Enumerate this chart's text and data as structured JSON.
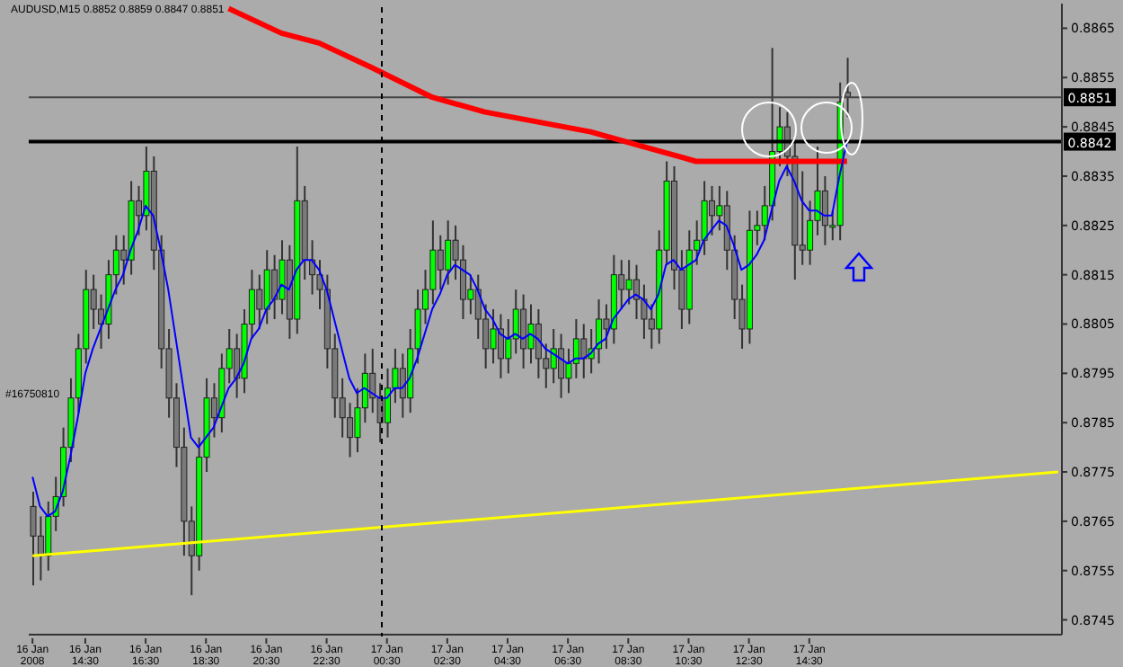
{
  "chart_data": {
    "type": "candlestick",
    "title": "AUDUSD,M15  0.8852 0.8859 0.8847 0.8851",
    "annotations": [
      "#16750810"
    ],
    "categories": [
      "16 Jan 2008",
      null,
      null,
      null,
      null,
      null,
      null,
      "16 Jan 14:30",
      null,
      null,
      null,
      null,
      null,
      null,
      null,
      "16 Jan 16:30",
      null,
      null,
      null,
      null,
      null,
      null,
      null,
      "16 Jan 18:30",
      null,
      null,
      null,
      null,
      null,
      null,
      null,
      "16 Jan 20:30",
      null,
      null,
      null,
      null,
      null,
      null,
      null,
      "16 Jan 22:30",
      null,
      null,
      null,
      null,
      null,
      null,
      null,
      "17 Jan 00:30",
      null,
      null,
      null,
      null,
      null,
      null,
      null,
      "17 Jan 02:30",
      null,
      null,
      null,
      null,
      null,
      null,
      null,
      "17 Jan 04:30",
      null,
      null,
      null,
      null,
      null,
      null,
      null,
      "17 Jan 06:30",
      null,
      null,
      null,
      null,
      null,
      null,
      null,
      "17 Jan 08:30",
      null,
      null,
      null,
      null,
      null,
      null,
      null,
      "17 Jan 10:30",
      null,
      null,
      null,
      null,
      null,
      null,
      null,
      "17 Jan 12:30",
      null,
      null,
      null,
      null,
      null,
      null,
      null,
      "17 Jan 14:30",
      null,
      null,
      null,
      null,
      null,
      null,
      null,
      null,
      null,
      null,
      null,
      null,
      null,
      null,
      null,
      null,
      null,
      null,
      null,
      null,
      null,
      null,
      null,
      null,
      null,
      null,
      null,
      null,
      null,
      null,
      null,
      null,
      null
    ],
    "ohlc": [
      [
        0.8768,
        0.8771,
        0.8752,
        0.8762
      ],
      [
        0.8762,
        0.8766,
        0.8753,
        0.8758
      ],
      [
        0.8758,
        0.8769,
        0.8755,
        0.8766
      ],
      [
        0.8766,
        0.8774,
        0.8763,
        0.877
      ],
      [
        0.877,
        0.8784,
        0.8768,
        0.878
      ],
      [
        0.878,
        0.8794,
        0.8777,
        0.879
      ],
      [
        0.879,
        0.8803,
        0.8787,
        0.88
      ],
      [
        0.88,
        0.8816,
        0.8797,
        0.8812
      ],
      [
        0.8812,
        0.8815,
        0.8804,
        0.8808
      ],
      [
        0.8808,
        0.8811,
        0.88,
        0.8805
      ],
      [
        0.8805,
        0.8818,
        0.8802,
        0.8815
      ],
      [
        0.8815,
        0.8823,
        0.8811,
        0.882
      ],
      [
        0.882,
        0.8823,
        0.8813,
        0.8818
      ],
      [
        0.8818,
        0.8834,
        0.8815,
        0.883
      ],
      [
        0.883,
        0.8833,
        0.8823,
        0.8827
      ],
      [
        0.8827,
        0.8841,
        0.8824,
        0.8836
      ],
      [
        0.8836,
        0.8839,
        0.8816,
        0.882
      ],
      [
        0.882,
        0.8823,
        0.8796,
        0.88
      ],
      [
        0.88,
        0.8804,
        0.8786,
        0.879
      ],
      [
        0.879,
        0.8793,
        0.8776,
        0.878
      ],
      [
        0.878,
        0.8784,
        0.8758,
        0.8765
      ],
      [
        0.8765,
        0.8768,
        0.875,
        0.8758
      ],
      [
        0.8758,
        0.8782,
        0.8755,
        0.8778
      ],
      [
        0.8778,
        0.8794,
        0.8775,
        0.879
      ],
      [
        0.879,
        0.8793,
        0.8782,
        0.8786
      ],
      [
        0.8786,
        0.8799,
        0.8783,
        0.8796
      ],
      [
        0.8796,
        0.8804,
        0.8793,
        0.88
      ],
      [
        0.88,
        0.8803,
        0.879,
        0.8794
      ],
      [
        0.8794,
        0.8808,
        0.8791,
        0.8805
      ],
      [
        0.8805,
        0.8816,
        0.8802,
        0.8812
      ],
      [
        0.8812,
        0.8815,
        0.8804,
        0.8808
      ],
      [
        0.8808,
        0.882,
        0.8805,
        0.8816
      ],
      [
        0.8816,
        0.8819,
        0.8806,
        0.881
      ],
      [
        0.881,
        0.8822,
        0.8807,
        0.8818
      ],
      [
        0.8818,
        0.8821,
        0.8802,
        0.8806
      ],
      [
        0.8806,
        0.8841,
        0.8803,
        0.883
      ],
      [
        0.883,
        0.8833,
        0.8814,
        0.8818
      ],
      [
        0.8818,
        0.8822,
        0.8811,
        0.8815
      ],
      [
        0.8815,
        0.8818,
        0.8808,
        0.8812
      ],
      [
        0.8812,
        0.8815,
        0.8796,
        0.88
      ],
      [
        0.88,
        0.8803,
        0.8786,
        0.879
      ],
      [
        0.879,
        0.8794,
        0.8782,
        0.8786
      ],
      [
        0.8786,
        0.8789,
        0.8778,
        0.8782
      ],
      [
        0.8782,
        0.8792,
        0.8779,
        0.8788
      ],
      [
        0.8788,
        0.8799,
        0.8785,
        0.8795
      ],
      [
        0.8795,
        0.88,
        0.8787,
        0.879
      ],
      [
        0.879,
        0.8793,
        0.8781,
        0.8785
      ],
      [
        0.8785,
        0.8796,
        0.8782,
        0.8792
      ],
      [
        0.8792,
        0.88,
        0.8789,
        0.8796
      ],
      [
        0.8796,
        0.8799,
        0.8786,
        0.879
      ],
      [
        0.879,
        0.8804,
        0.8787,
        0.88
      ],
      [
        0.88,
        0.8812,
        0.8797,
        0.8808
      ],
      [
        0.8808,
        0.8816,
        0.8805,
        0.8812
      ],
      [
        0.8812,
        0.8826,
        0.8809,
        0.882
      ],
      [
        0.882,
        0.8823,
        0.8812,
        0.8816
      ],
      [
        0.8816,
        0.8826,
        0.8813,
        0.8822
      ],
      [
        0.8822,
        0.8825,
        0.8814,
        0.8818
      ],
      [
        0.8818,
        0.8821,
        0.8806,
        0.881
      ],
      [
        0.881,
        0.8815,
        0.8807,
        0.8812
      ],
      [
        0.8812,
        0.8815,
        0.8802,
        0.8806
      ],
      [
        0.8806,
        0.8809,
        0.8796,
        0.88
      ],
      [
        0.88,
        0.8808,
        0.8797,
        0.8804
      ],
      [
        0.8804,
        0.8807,
        0.8794,
        0.8798
      ],
      [
        0.8798,
        0.8806,
        0.8795,
        0.8802
      ],
      [
        0.8802,
        0.8812,
        0.8799,
        0.8808
      ],
      [
        0.8808,
        0.8811,
        0.8796,
        0.88
      ],
      [
        0.88,
        0.8809,
        0.8797,
        0.8805
      ],
      [
        0.8805,
        0.8808,
        0.8794,
        0.8798
      ],
      [
        0.8798,
        0.8801,
        0.8792,
        0.8796
      ],
      [
        0.8796,
        0.8804,
        0.8793,
        0.88
      ],
      [
        0.88,
        0.8803,
        0.879,
        0.8794
      ],
      [
        0.8794,
        0.88,
        0.8791,
        0.8797
      ],
      [
        0.8797,
        0.8806,
        0.8794,
        0.8802
      ],
      [
        0.8802,
        0.8805,
        0.8794,
        0.8798
      ],
      [
        0.8798,
        0.8804,
        0.8795,
        0.88
      ],
      [
        0.88,
        0.881,
        0.8797,
        0.8806
      ],
      [
        0.8806,
        0.8809,
        0.88,
        0.8804
      ],
      [
        0.8804,
        0.8819,
        0.8801,
        0.8815
      ],
      [
        0.8815,
        0.8818,
        0.8808,
        0.8812
      ],
      [
        0.8812,
        0.8818,
        0.8809,
        0.8814
      ],
      [
        0.8814,
        0.8817,
        0.8806,
        0.881
      ],
      [
        0.881,
        0.8813,
        0.8802,
        0.8806
      ],
      [
        0.8806,
        0.8809,
        0.88,
        0.8804
      ],
      [
        0.8804,
        0.8824,
        0.8801,
        0.882
      ],
      [
        0.882,
        0.8838,
        0.8817,
        0.8834
      ],
      [
        0.8834,
        0.8837,
        0.8812,
        0.8816
      ],
      [
        0.8816,
        0.882,
        0.8804,
        0.8808
      ],
      [
        0.8808,
        0.8824,
        0.8805,
        0.882
      ],
      [
        0.882,
        0.8826,
        0.8817,
        0.8822
      ],
      [
        0.8822,
        0.8834,
        0.8819,
        0.883
      ],
      [
        0.883,
        0.8833,
        0.8823,
        0.8827
      ],
      [
        0.8827,
        0.8833,
        0.8824,
        0.8829
      ],
      [
        0.8829,
        0.8832,
        0.8816,
        0.882
      ],
      [
        0.882,
        0.8823,
        0.8806,
        0.881
      ],
      [
        0.881,
        0.8813,
        0.88,
        0.8804
      ],
      [
        0.8804,
        0.8828,
        0.8801,
        0.8824
      ],
      [
        0.8824,
        0.8828,
        0.8821,
        0.8825
      ],
      [
        0.8825,
        0.8833,
        0.8822,
        0.8829
      ],
      [
        0.8829,
        0.8861,
        0.8826,
        0.884
      ],
      [
        0.884,
        0.8849,
        0.8837,
        0.8845
      ],
      [
        0.8845,
        0.8848,
        0.8835,
        0.8839
      ],
      [
        0.8839,
        0.8842,
        0.8814,
        0.8821
      ],
      [
        0.8821,
        0.8836,
        0.8817,
        0.882
      ],
      [
        0.882,
        0.883,
        0.8817,
        0.8826
      ],
      [
        0.8826,
        0.8841,
        0.8823,
        0.8832
      ],
      [
        0.8832,
        0.8835,
        0.8821,
        0.8825
      ],
      [
        0.8825,
        0.8828,
        0.8822,
        0.8825
      ],
      [
        0.8825,
        0.8854,
        0.8822,
        0.885
      ],
      [
        0.8852,
        0.8859,
        0.8847,
        0.8851
      ],
      null,
      null,
      null,
      null,
      null,
      null,
      null,
      null,
      null,
      null,
      null,
      null,
      null,
      null,
      null,
      null,
      null,
      null,
      null,
      null,
      null,
      null,
      null,
      null,
      null,
      null,
      null,
      null
    ],
    "series": [
      {
        "type": "line",
        "color": "#ff0000",
        "values": [
          null,
          null,
          null,
          null,
          null,
          null,
          null,
          null,
          null,
          null,
          null,
          null,
          null,
          null,
          null,
          null,
          null,
          null,
          null,
          null,
          null,
          null,
          null,
          null,
          null,
          null,
          0.8869,
          null,
          null,
          null,
          null,
          null,
          null,
          0.8864,
          null,
          null,
          null,
          null,
          0.8862,
          null,
          null,
          null,
          null,
          null,
          null,
          0.8857,
          null,
          null,
          null,
          null,
          null,
          null,
          null,
          0.8851,
          null,
          null,
          null,
          null,
          null,
          null,
          0.8848,
          null,
          null,
          null,
          null,
          null,
          null,
          0.8846,
          null,
          null,
          null,
          null,
          null,
          null,
          0.8844,
          null,
          null,
          null,
          null,
          null,
          null,
          0.8841,
          null,
          null,
          null,
          null,
          null,
          null,
          0.8838,
          null,
          null,
          null,
          null,
          null,
          null,
          0.8838,
          null,
          null,
          null,
          null,
          null,
          null,
          null,
          null,
          null,
          null,
          null,
          null,
          0.8838,
          null,
          null,
          null,
          null,
          null,
          null,
          null,
          null,
          null,
          null,
          null,
          null,
          null,
          null,
          null,
          null,
          null,
          null,
          null,
          null,
          null,
          null,
          null,
          null,
          null,
          null,
          null,
          null
        ]
      },
      {
        "type": "line",
        "color": "#0000ff",
        "values": [
          0.8774,
          0.8768,
          0.8766,
          0.8767,
          0.8771,
          0.8778,
          0.8786,
          0.8795,
          0.88,
          0.8804,
          0.8808,
          0.8812,
          0.8815,
          0.882,
          0.8824,
          0.8829,
          0.8827,
          0.882,
          0.8812,
          0.8802,
          0.8792,
          0.8782,
          0.878,
          0.8782,
          0.8784,
          0.8788,
          0.8792,
          0.8794,
          0.8797,
          0.8802,
          0.8804,
          0.8808,
          0.881,
          0.8813,
          0.8812,
          0.8816,
          0.8818,
          0.8818,
          0.8816,
          0.8812,
          0.8806,
          0.88,
          0.8794,
          0.8791,
          0.8792,
          0.8791,
          0.879,
          0.879,
          0.8792,
          0.8792,
          0.8794,
          0.8798,
          0.8803,
          0.8808,
          0.8811,
          0.8815,
          0.8817,
          0.8816,
          0.8815,
          0.8812,
          0.8808,
          0.8806,
          0.8803,
          0.8802,
          0.8803,
          0.8802,
          0.8803,
          0.8802,
          0.88,
          0.8799,
          0.8798,
          0.8797,
          0.8798,
          0.8798,
          0.8799,
          0.8801,
          0.8802,
          0.8806,
          0.8808,
          0.881,
          0.8811,
          0.881,
          0.8808,
          0.8811,
          0.8817,
          0.8818,
          0.8816,
          0.8817,
          0.8818,
          0.8822,
          0.8824,
          0.8826,
          0.8825,
          0.8821,
          0.8816,
          0.8817,
          0.8819,
          0.8822,
          0.8828,
          0.8834,
          0.8837,
          0.8834,
          0.883,
          0.8828,
          0.8828,
          0.8827,
          0.8827,
          0.8835,
          0.8842,
          null,
          null,
          null,
          null,
          null,
          null,
          null,
          null,
          null,
          null,
          null,
          null,
          null,
          null,
          null,
          null,
          null,
          null,
          null,
          null,
          null,
          null,
          null,
          null,
          null,
          null,
          null,
          null
        ]
      },
      {
        "type": "line",
        "color": "#ffff00",
        "values": [
          0.8758,
          null,
          null,
          null,
          null,
          null,
          null,
          null,
          null,
          null,
          null,
          null,
          null,
          null,
          null,
          null,
          null,
          null,
          null,
          null,
          null,
          null,
          null,
          null,
          null,
          null,
          null,
          null,
          null,
          null,
          null,
          null,
          null,
          null,
          null,
          null,
          null,
          null,
          null,
          null,
          null,
          null,
          null,
          null,
          null,
          null,
          null,
          null,
          null,
          null,
          null,
          null,
          null,
          null,
          null,
          null,
          null,
          null,
          null,
          null,
          null,
          null,
          null,
          null,
          null,
          null,
          null,
          null,
          null,
          null,
          null,
          null,
          null,
          null,
          null,
          null,
          null,
          null,
          null,
          null,
          null,
          null,
          null,
          null,
          null,
          null,
          null,
          null,
          null,
          null,
          null,
          null,
          null,
          null,
          null,
          null,
          null,
          null,
          null,
          null,
          null,
          null,
          null,
          null,
          null,
          null,
          null,
          null,
          null,
          null,
          null,
          null,
          null,
          null,
          null,
          null,
          null,
          null,
          null,
          null,
          null,
          null,
          null,
          null,
          null,
          null,
          null,
          null,
          null,
          null,
          null,
          null,
          null,
          null,
          null,
          null,
          0.8775
        ]
      }
    ],
    "ylim": [
      0.8742,
      0.887
    ],
    "yticks": [
      0.8745,
      0.8755,
      0.8765,
      0.8775,
      0.8785,
      0.8795,
      0.8805,
      0.8815,
      0.8825,
      0.8835,
      0.8845,
      0.8855,
      0.8865
    ],
    "ref_lines": [
      {
        "axis": "y",
        "value": 0.8842,
        "label": "0.8842",
        "color": "#000000"
      },
      {
        "axis": "y",
        "value": 0.8851,
        "label": "0.8851",
        "color": "#444444"
      }
    ]
  }
}
